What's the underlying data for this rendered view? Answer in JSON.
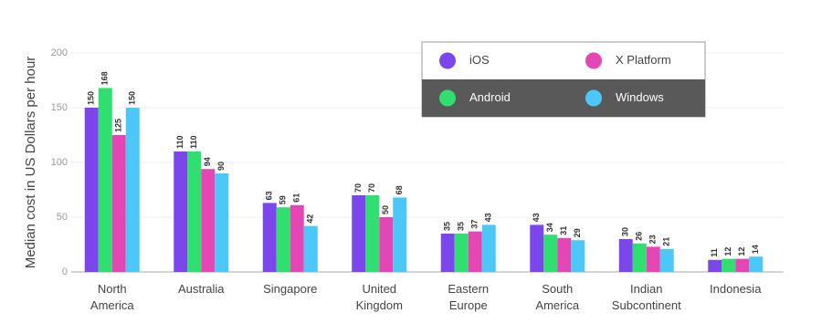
{
  "chart_data": {
    "type": "bar",
    "y_label": "Median cost in US Dollars per hour",
    "categories": [
      "North America",
      "Australia",
      "Singapore",
      "United Kingdom",
      "Eastern Europe",
      "South America",
      "Indian Subcontinent",
      "Indonesia"
    ],
    "series": [
      {
        "name": "iOS",
        "color": "#7b47ec",
        "values": [
          150,
          110,
          63,
          70,
          35,
          43,
          30,
          11
        ]
      },
      {
        "name": "Android",
        "color": "#2fe070",
        "values": [
          168,
          110,
          59,
          70,
          35,
          34,
          26,
          12
        ]
      },
      {
        "name": "X Platform",
        "color": "#e446b4",
        "values": [
          125,
          94,
          61,
          50,
          37,
          31,
          23,
          12
        ]
      },
      {
        "name": "Windows",
        "color": "#4cc8f8",
        "values": [
          150,
          90,
          42,
          68,
          43,
          29,
          21,
          14
        ]
      }
    ],
    "ylim": [
      0,
      200
    ],
    "yticks": [
      0,
      50,
      100,
      150,
      200
    ],
    "grid": true,
    "legend": "top-right"
  }
}
